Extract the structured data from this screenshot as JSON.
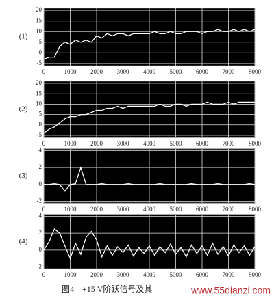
{
  "caption": "图4　+15 V阶跃信号及其",
  "watermark": "www.55dianzi.com",
  "chart_data": [
    {
      "type": "line",
      "label": "(1)",
      "color": "#ffffff",
      "background": "#000000",
      "grid": true,
      "x": [
        0,
        200,
        400,
        600,
        800,
        1000,
        1200,
        1400,
        1600,
        1800,
        2000,
        2200,
        2400,
        2600,
        2800,
        3000,
        3200,
        3400,
        3600,
        3800,
        4000,
        4200,
        4400,
        4600,
        4800,
        5000,
        5200,
        5400,
        5600,
        5800,
        6000,
        6200,
        6400,
        6600,
        6800,
        7000,
        7200,
        7400,
        7600,
        7800,
        8000
      ],
      "values": [
        -3,
        -2,
        -2,
        3,
        5,
        4,
        6,
        5,
        6,
        5,
        8,
        7,
        9,
        8,
        9,
        9,
        8,
        9,
        9,
        9,
        9,
        10,
        9,
        9,
        10,
        9,
        9,
        10,
        10,
        10,
        9,
        10,
        10,
        11,
        10,
        10,
        11,
        10,
        11,
        10,
        11
      ],
      "xlim": [
        0,
        8000
      ],
      "xticks": [
        0,
        1000,
        2000,
        3000,
        4000,
        5000,
        6000,
        7000,
        8000
      ],
      "ylim": [
        -6,
        21
      ],
      "yticks": [
        -5,
        0,
        5,
        10,
        15,
        20
      ]
    },
    {
      "type": "line",
      "label": "(2)",
      "color": "#ffffff",
      "background": "#000000",
      "grid": true,
      "x": [
        0,
        200,
        400,
        600,
        800,
        1000,
        1200,
        1400,
        1600,
        1800,
        2000,
        2200,
        2400,
        2600,
        2800,
        3000,
        3200,
        3400,
        3600,
        3800,
        4000,
        4200,
        4400,
        4600,
        4800,
        5000,
        5200,
        5400,
        5600,
        5800,
        6000,
        6200,
        6400,
        6600,
        6800,
        7000,
        7200,
        7400,
        7600,
        7800,
        8000
      ],
      "values": [
        -4,
        -2,
        -1,
        1,
        3,
        4,
        4,
        5,
        5,
        6,
        7,
        7,
        8,
        8,
        9,
        8,
        9,
        9,
        9,
        9,
        9,
        9,
        10,
        9,
        9,
        10,
        10,
        9,
        10,
        10,
        10,
        11,
        10,
        10,
        10,
        11,
        10,
        11,
        11,
        11,
        11
      ],
      "xlim": [
        0,
        8000
      ],
      "xticks": [
        0,
        1000,
        2000,
        3000,
        4000,
        5000,
        6000,
        7000,
        8000
      ],
      "ylim": [
        -6,
        21
      ],
      "yticks": [
        -5,
        0,
        5,
        10,
        15,
        20
      ]
    },
    {
      "type": "line",
      "label": "(3)",
      "color": "#ffffff",
      "background": "#000000",
      "grid": true,
      "x": [
        0,
        200,
        400,
        600,
        800,
        1000,
        1200,
        1400,
        1600,
        1800,
        2000,
        2200,
        2400,
        2600,
        2800,
        3000,
        3200,
        3400,
        3600,
        3800,
        4000,
        4200,
        4400,
        4600,
        4800,
        5000,
        5200,
        5400,
        5600,
        5800,
        6000,
        6200,
        6400,
        6600,
        6800,
        7000,
        7200,
        7400,
        7600,
        7800,
        8000
      ],
      "values": [
        0,
        0,
        0.1,
        0,
        -0.8,
        0,
        0.1,
        2,
        0,
        0,
        0,
        0.1,
        0,
        0,
        0,
        0,
        0.1,
        0,
        0,
        0,
        0,
        0,
        0.1,
        0,
        0,
        0,
        0,
        0,
        0.1,
        0,
        0,
        0,
        0,
        0.1,
        0,
        0,
        0,
        0,
        0,
        0.1,
        0
      ],
      "xlim": [
        0,
        8000
      ],
      "xticks": [
        0,
        1000,
        2000,
        3000,
        4000,
        5000,
        6000,
        7000,
        8000
      ],
      "ylim": [
        -2.2,
        4.2
      ],
      "yticks": [
        -2,
        0,
        2,
        4
      ]
    },
    {
      "type": "line",
      "label": "(4)",
      "color": "#ffffff",
      "background": "#000000",
      "grid": true,
      "x": [
        0,
        200,
        400,
        600,
        800,
        1000,
        1200,
        1400,
        1600,
        1800,
        2000,
        2200,
        2400,
        2600,
        2800,
        3000,
        3200,
        3400,
        3600,
        3800,
        4000,
        4200,
        4400,
        4600,
        4800,
        5000,
        5200,
        5400,
        5600,
        5800,
        6000,
        6200,
        6400,
        6600,
        6800,
        7000,
        7200,
        7400,
        7600,
        7800,
        8000
      ],
      "values": [
        0,
        1,
        2.5,
        2,
        0.5,
        -1,
        0.8,
        -0.5,
        1.5,
        2.2,
        1.2,
        -0.8,
        0.5,
        -0.6,
        0.4,
        -0.3,
        0.6,
        -0.7,
        0.3,
        -0.4,
        0.5,
        -0.6,
        0.4,
        -0.3,
        0.7,
        -0.5,
        0.3,
        -0.8,
        0.6,
        -0.4,
        0.5,
        -0.6,
        0.8,
        -0.5,
        0.4,
        -0.7,
        0.6,
        -0.3,
        0.5,
        -0.6,
        0.4
      ],
      "xlim": [
        0,
        8000
      ],
      "xticks": [
        0,
        1000,
        2000,
        3000,
        4000,
        5000,
        6000,
        7000,
        8000
      ],
      "ylim": [
        -2.2,
        4.2
      ],
      "yticks": [
        -2,
        0,
        2,
        4
      ]
    }
  ]
}
